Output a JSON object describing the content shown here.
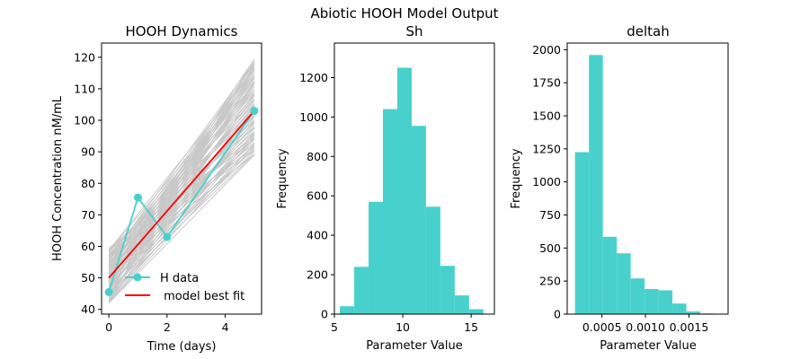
{
  "figure": {
    "suptitle": "Abiotic HOOH Model Output"
  },
  "colors": {
    "data": "#48d1cc",
    "fit": "#ff0000",
    "ensemble": "#c8c8c8",
    "hist": "#48d1cc"
  },
  "chart_data": [
    {
      "type": "line",
      "title": "HOOH Dynamics",
      "xlabel": "Time (days)",
      "ylabel": "HOOH Concentration nM/mL",
      "xlim": [
        -0.25,
        5.25
      ],
      "ylim": [
        38.5,
        124.5
      ],
      "xticks": [
        0,
        2,
        4
      ],
      "yticks": [
        40,
        50,
        60,
        70,
        80,
        90,
        100,
        110,
        120
      ],
      "series": [
        {
          "name": "H data",
          "x": [
            0,
            1,
            2,
            5
          ],
          "y": [
            45.5,
            75.5,
            63,
            103
          ]
        },
        {
          "name": " model best fit",
          "x": [
            0,
            5
          ],
          "y": [
            50,
            103
          ]
        }
      ],
      "ensemble": {
        "x": [
          0,
          5
        ],
        "y0_range": [
          42,
          59.5
        ],
        "y5_range": [
          89,
          120
        ],
        "count": 70
      },
      "legend": "lower-right"
    },
    {
      "type": "histogram",
      "title": "Sh",
      "xlabel": "Parameter Value",
      "ylabel": "Frequency",
      "xlim": [
        5.0,
        16.7
      ],
      "ylim": [
        0,
        1375
      ],
      "xticks": [
        5,
        10,
        15
      ],
      "yticks": [
        0,
        200,
        400,
        600,
        800,
        1000,
        1200
      ],
      "bin_edges": [
        5.4,
        6.45,
        7.5,
        8.55,
        9.6,
        10.65,
        11.7,
        12.75,
        13.8,
        14.85,
        15.9
      ],
      "counts": [
        40,
        240,
        570,
        1040,
        1250,
        955,
        545,
        245,
        95,
        25
      ]
    },
    {
      "type": "histogram",
      "title": "deltah",
      "xlabel": "Parameter Value",
      "ylabel": "Frequency",
      "xlim": [
        0.0001,
        0.00195
      ],
      "ylim": [
        0,
        2050
      ],
      "xticks": [
        "0.0005",
        "0.0010",
        "0.0015"
      ],
      "xtick_values": [
        0.0005,
        0.001,
        0.0015
      ],
      "yticks": [
        0,
        250,
        500,
        750,
        1000,
        1250,
        1500,
        1750,
        2000
      ],
      "bin_edges": [
        0.00019,
        0.00035,
        0.00051,
        0.00067,
        0.00083,
        0.00099,
        0.00115,
        0.00131,
        0.00147,
        0.00163,
        0.00179
      ],
      "counts": [
        1225,
        1960,
        585,
        460,
        270,
        190,
        180,
        80,
        20,
        5
      ]
    }
  ]
}
